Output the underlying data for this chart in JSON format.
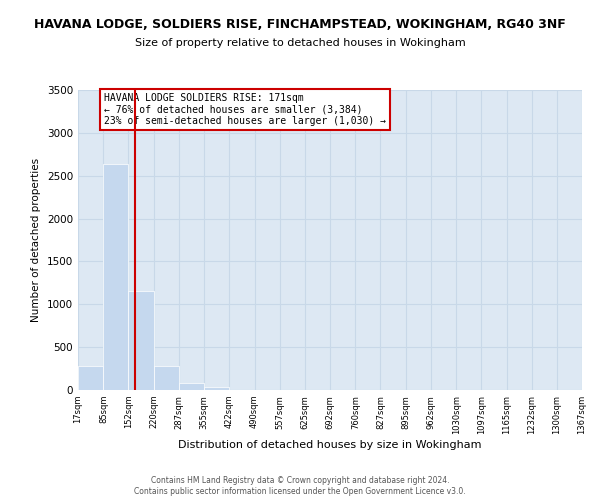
{
  "title": "HAVANA LODGE, SOLDIERS RISE, FINCHAMPSTEAD, WOKINGHAM, RG40 3NF",
  "subtitle": "Size of property relative to detached houses in Wokingham",
  "xlabel": "Distribution of detached houses by size in Wokingham",
  "ylabel": "Number of detached properties",
  "bar_edges": [
    17,
    85,
    152,
    220,
    287,
    355,
    422,
    490,
    557,
    625,
    692,
    760,
    827,
    895,
    962,
    1030,
    1097,
    1165,
    1232,
    1300,
    1367
  ],
  "bar_heights": [
    280,
    2640,
    1150,
    285,
    85,
    30,
    0,
    0,
    0,
    0,
    0,
    0,
    0,
    0,
    0,
    0,
    0,
    0,
    0,
    0
  ],
  "bar_color": "#c5d8ee",
  "bar_edgecolor": "#ffffff",
  "property_line_x": 171,
  "property_line_color": "#cc0000",
  "annotation_text": "HAVANA LODGE SOLDIERS RISE: 171sqm\n← 76% of detached houses are smaller (3,384)\n23% of semi-detached houses are larger (1,030) →",
  "annotation_box_edgecolor": "#cc0000",
  "annotation_box_facecolor": "#ffffff",
  "ylim": [
    0,
    3500
  ],
  "yticks": [
    0,
    500,
    1000,
    1500,
    2000,
    2500,
    3000,
    3500
  ],
  "xtick_labels": [
    "17sqm",
    "85sqm",
    "152sqm",
    "220sqm",
    "287sqm",
    "355sqm",
    "422sqm",
    "490sqm",
    "557sqm",
    "625sqm",
    "692sqm",
    "760sqm",
    "827sqm",
    "895sqm",
    "962sqm",
    "1030sqm",
    "1097sqm",
    "1165sqm",
    "1232sqm",
    "1300sqm",
    "1367sqm"
  ],
  "grid_color": "#c8d8e8",
  "bg_color": "#dde8f3",
  "footer1": "Contains HM Land Registry data © Crown copyright and database right 2024.",
  "footer2": "Contains public sector information licensed under the Open Government Licence v3.0."
}
